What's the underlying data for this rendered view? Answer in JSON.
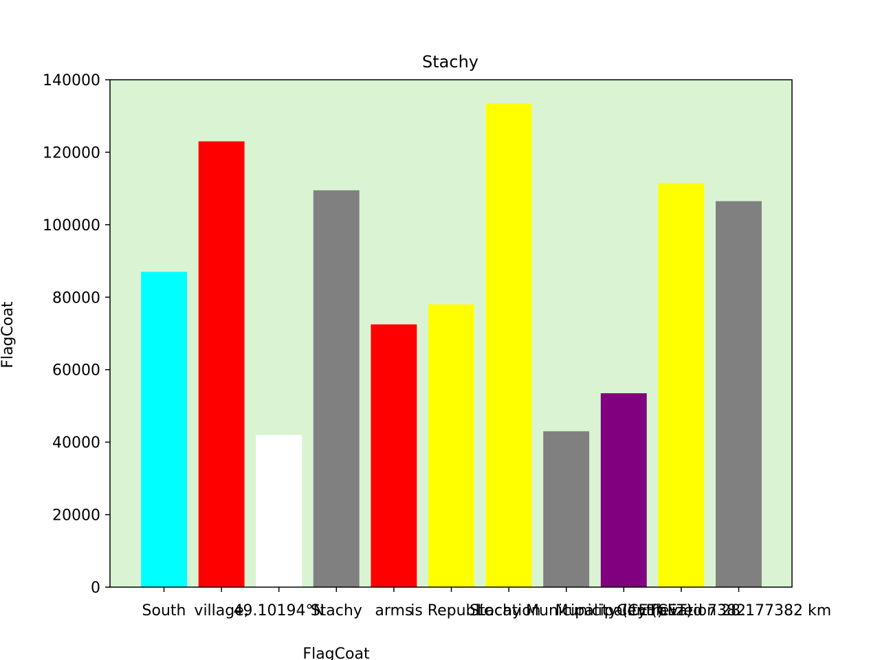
{
  "chart_data": {
    "type": "bar",
    "title": "Stachy",
    "xlabel": "FlagCoat",
    "ylabel": "FlagCoat",
    "ylim": [
      0,
      140000
    ],
    "yticks": [
      0,
      20000,
      40000,
      60000,
      80000,
      100000,
      120000,
      140000
    ],
    "tick_labels": [
      "0",
      "20000",
      "40000",
      "60000",
      "80000",
      "100000",
      "120000",
      "140000"
    ],
    "background": "#daf4d3",
    "grid": false,
    "categories": [
      "South",
      "village,",
      "49.10194°N",
      "Stachy",
      "arms",
      "is",
      "Republic",
      "Location",
      "Municipality",
      "(CET)",
      "Elevation"
    ],
    "category_display": [
      "South",
      "village,",
      "49.10194°N",
      "Stachy",
      "arms",
      "is Republic",
      "Location",
      "Stachy Municipality (CET)",
      "Municipality (CET)",
      "Centralized 7382",
      "Elevation 28.177382 km"
    ],
    "values": [
      87000,
      123000,
      42000,
      109500,
      72500,
      78000,
      133500,
      43000,
      53500,
      111500,
      106500
    ],
    "colors": [
      "#00ffff",
      "#ff0000",
      "#ffffff",
      "#808080",
      "#ff0000",
      "#ffff00",
      "#ffff00",
      "#808080",
      "#800080",
      "#ffff00",
      "#808080"
    ]
  }
}
